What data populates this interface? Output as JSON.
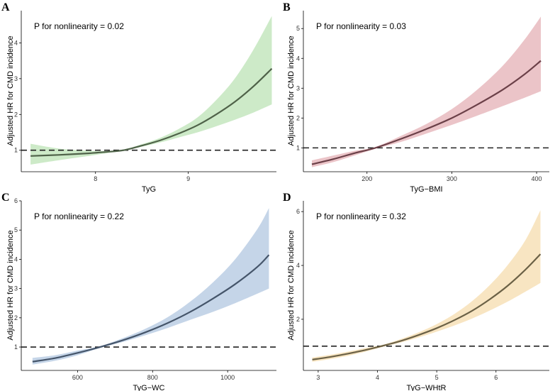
{
  "chart_data": [
    {
      "type": "line",
      "panel": "A",
      "annotation": "P for nonlinearity = 0.02",
      "xlabel": "TyG",
      "ylabel": "Adjusted HR for CMD incidence",
      "xlim": [
        7.2,
        9.95
      ],
      "ylim": [
        0.4,
        4.9
      ],
      "xticks": [
        8,
        9
      ],
      "yticks": [
        1,
        2,
        3,
        4
      ],
      "reference_y": 1,
      "colors": {
        "band": "#cdeac8",
        "line": "#4f6249"
      },
      "series": [
        {
          "name": "HR",
          "x": [
            7.3,
            7.6,
            7.9,
            8.1,
            8.3,
            8.5,
            8.7,
            8.9,
            9.1,
            9.3,
            9.5,
            9.7,
            9.9
          ],
          "y": [
            0.84,
            0.87,
            0.91,
            0.95,
            1.0,
            1.13,
            1.28,
            1.47,
            1.7,
            2.0,
            2.35,
            2.78,
            3.28
          ]
        },
        {
          "name": "Lower 95% CI",
          "x": [
            7.3,
            7.6,
            7.9,
            8.1,
            8.3,
            8.5,
            8.7,
            8.9,
            9.1,
            9.3,
            9.5,
            9.7,
            9.9
          ],
          "y": [
            0.6,
            0.72,
            0.83,
            0.91,
            0.99,
            1.1,
            1.22,
            1.36,
            1.5,
            1.67,
            1.85,
            2.05,
            2.28
          ]
        },
        {
          "name": "Upper 95% CI",
          "x": [
            7.3,
            7.6,
            7.9,
            8.1,
            8.3,
            8.5,
            8.7,
            8.9,
            9.1,
            9.3,
            9.5,
            9.7,
            9.9
          ],
          "y": [
            1.18,
            1.05,
            0.99,
            0.98,
            1.02,
            1.17,
            1.35,
            1.6,
            1.92,
            2.4,
            3.0,
            3.8,
            4.75
          ]
        }
      ]
    },
    {
      "type": "line",
      "panel": "B",
      "annotation": "P for nonlinearity = 0.03",
      "xlabel": "TyG−BMI",
      "ylabel": "Adjusted HR for CMD incidence",
      "xlim": [
        125,
        415
      ],
      "ylim": [
        0.2,
        5.6
      ],
      "xticks": [
        200,
        300,
        400
      ],
      "yticks": [
        1,
        2,
        3,
        4,
        5
      ],
      "reference_y": 1,
      "colors": {
        "band": "#ebc4c8",
        "line": "#6b4048"
      },
      "series": [
        {
          "name": "HR",
          "x": [
            135,
            160,
            185,
            210,
            240,
            270,
            300,
            330,
            360,
            385,
            405
          ],
          "y": [
            0.45,
            0.62,
            0.82,
            1.0,
            1.3,
            1.63,
            2.0,
            2.45,
            2.95,
            3.45,
            3.92
          ]
        },
        {
          "name": "Lower 95% CI",
          "x": [
            135,
            160,
            185,
            210,
            240,
            270,
            300,
            330,
            360,
            385,
            405
          ],
          "y": [
            0.35,
            0.52,
            0.74,
            0.97,
            1.2,
            1.48,
            1.77,
            2.08,
            2.4,
            2.67,
            2.9
          ]
        },
        {
          "name": "Upper 95% CI",
          "x": [
            135,
            160,
            185,
            210,
            240,
            270,
            300,
            330,
            360,
            385,
            405
          ],
          "y": [
            0.58,
            0.74,
            0.9,
            1.03,
            1.4,
            1.8,
            2.3,
            2.95,
            3.75,
            4.6,
            5.4
          ]
        }
      ]
    },
    {
      "type": "line",
      "panel": "C",
      "annotation": "P for nonlinearity = 0.22",
      "xlabel": "TyG−WC",
      "ylabel": "Adjusted HR for CMD incidence",
      "xlim": [
        450,
        1130
      ],
      "ylim": [
        0.2,
        6.0
      ],
      "xticks": [
        600,
        800,
        1000
      ],
      "yticks": [
        1,
        2,
        3,
        4,
        5,
        6
      ],
      "reference_y": 1,
      "colors": {
        "band": "#c5d5e8",
        "line": "#45556a"
      },
      "series": [
        {
          "name": "HR",
          "x": [
            480,
            540,
            600,
            660,
            720,
            780,
            840,
            900,
            960,
            1020,
            1080,
            1110
          ],
          "y": [
            0.5,
            0.62,
            0.8,
            1.0,
            1.23,
            1.5,
            1.82,
            2.2,
            2.65,
            3.15,
            3.75,
            4.15
          ]
        },
        {
          "name": "Lower 95% CI",
          "x": [
            480,
            540,
            600,
            660,
            720,
            780,
            840,
            900,
            960,
            1020,
            1080,
            1110
          ],
          "y": [
            0.4,
            0.53,
            0.72,
            0.97,
            1.17,
            1.4,
            1.65,
            1.93,
            2.2,
            2.5,
            2.83,
            3.0
          ]
        },
        {
          "name": "Upper 95% CI",
          "x": [
            480,
            540,
            600,
            660,
            720,
            780,
            840,
            900,
            960,
            1020,
            1080,
            1110
          ],
          "y": [
            0.63,
            0.72,
            0.88,
            1.03,
            1.3,
            1.62,
            2.02,
            2.55,
            3.2,
            4.0,
            5.05,
            5.75
          ]
        }
      ]
    },
    {
      "type": "line",
      "panel": "D",
      "annotation": "P for nonlinearity = 0.32",
      "xlabel": "TyG−WHtR",
      "ylabel": "Adjusted HR for CMD incidence",
      "xlim": [
        2.75,
        6.9
      ],
      "ylim": [
        0.1,
        6.4
      ],
      "xticks": [
        3,
        4,
        5,
        6
      ],
      "yticks": [
        2,
        4,
        6
      ],
      "reference_y": 1,
      "colors": {
        "band": "#f8e5c2",
        "line": "#6b6146"
      },
      "series": [
        {
          "name": "HR",
          "x": [
            2.9,
            3.2,
            3.5,
            3.8,
            4.1,
            4.4,
            4.7,
            5.0,
            5.3,
            5.6,
            5.9,
            6.2,
            6.5,
            6.75
          ],
          "y": [
            0.5,
            0.6,
            0.72,
            0.86,
            1.02,
            1.2,
            1.42,
            1.67,
            1.97,
            2.32,
            2.75,
            3.25,
            3.85,
            4.42
          ]
        },
        {
          "name": "Lower 95% CI",
          "x": [
            2.9,
            3.2,
            3.5,
            3.8,
            4.1,
            4.4,
            4.7,
            5.0,
            5.3,
            5.6,
            5.9,
            6.2,
            6.5,
            6.75
          ],
          "y": [
            0.42,
            0.52,
            0.64,
            0.8,
            0.98,
            1.14,
            1.33,
            1.54,
            1.77,
            2.03,
            2.33,
            2.66,
            3.03,
            3.35
          ]
        },
        {
          "name": "Upper 95% CI",
          "x": [
            2.9,
            3.2,
            3.5,
            3.8,
            4.1,
            4.4,
            4.7,
            5.0,
            5.3,
            5.6,
            5.9,
            6.2,
            6.5,
            6.75
          ],
          "y": [
            0.58,
            0.68,
            0.8,
            0.93,
            1.06,
            1.27,
            1.52,
            1.82,
            2.2,
            2.68,
            3.28,
            4.02,
            4.95,
            6.05
          ]
        }
      ]
    }
  ]
}
